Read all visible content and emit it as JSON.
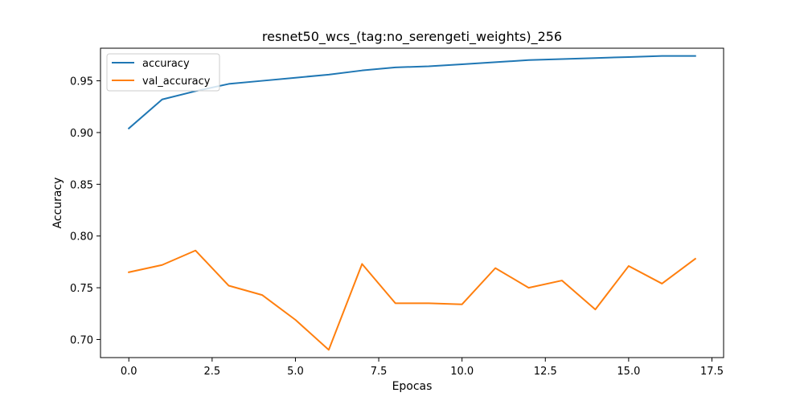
{
  "chart_data": {
    "type": "line",
    "title": "resnet50_wcs_(tag:no_serengeti_weights)_256",
    "xlabel": "Epocas",
    "ylabel": "Accuracy",
    "x": [
      0,
      1,
      2,
      3,
      4,
      5,
      6,
      7,
      8,
      9,
      10,
      11,
      12,
      13,
      14,
      15,
      16,
      17
    ],
    "series": [
      {
        "name": "accuracy",
        "color": "#1f77b4",
        "values": [
          0.904,
          0.932,
          0.94,
          0.947,
          0.95,
          0.953,
          0.956,
          0.96,
          0.963,
          0.964,
          0.966,
          0.968,
          0.97,
          0.971,
          0.972,
          0.973,
          0.974,
          0.974
        ]
      },
      {
        "name": "val_accuracy",
        "color": "#ff7f0e",
        "values": [
          0.765,
          0.772,
          0.786,
          0.752,
          0.743,
          0.719,
          0.69,
          0.773,
          0.735,
          0.735,
          0.734,
          0.769,
          0.75,
          0.757,
          0.729,
          0.771,
          0.754,
          0.778
        ]
      }
    ],
    "xlim": [
      -0.85,
      17.85
    ],
    "ylim": [
      0.6825,
      0.9815
    ],
    "xticks": [
      0.0,
      2.5,
      5.0,
      7.5,
      10.0,
      12.5,
      15.0,
      17.5
    ],
    "xtick_labels": [
      "0.0",
      "2.5",
      "5.0",
      "7.5",
      "10.0",
      "12.5",
      "15.0",
      "17.5"
    ],
    "yticks": [
      0.7,
      0.75,
      0.8,
      0.85,
      0.9,
      0.95
    ],
    "ytick_labels": [
      "0.70",
      "0.75",
      "0.80",
      "0.85",
      "0.90",
      "0.95"
    ],
    "grid": false,
    "legend_position": "upper-left"
  }
}
